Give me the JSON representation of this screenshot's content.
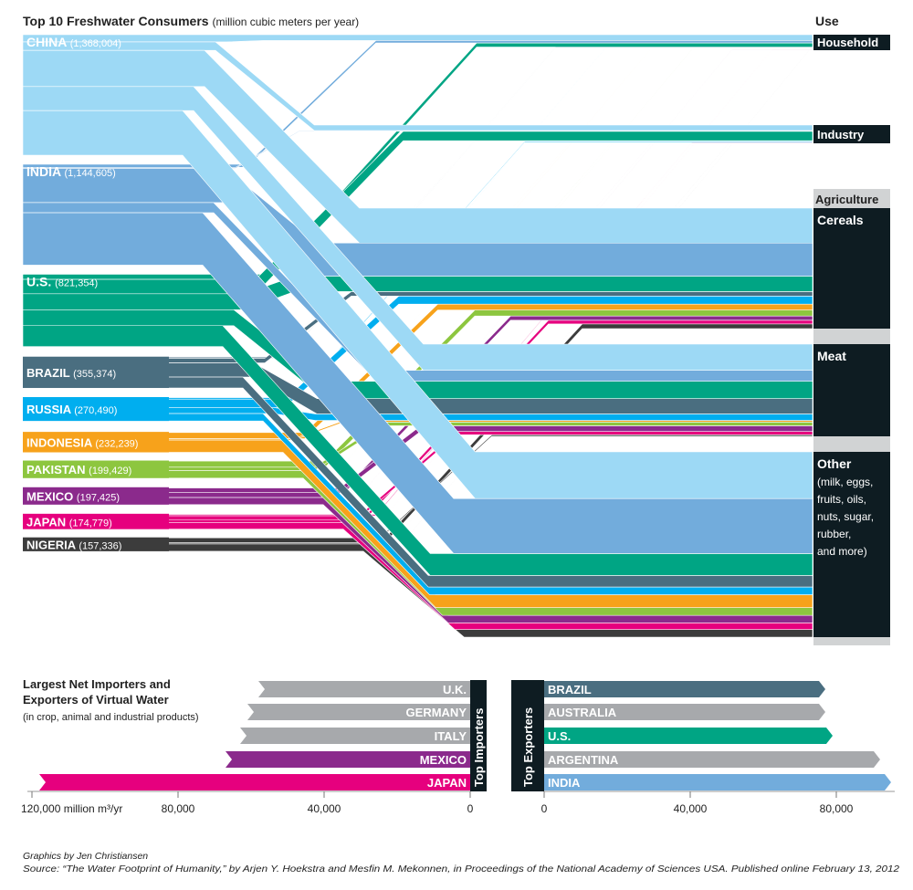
{
  "chart_data": [
    {
      "type": "sankey",
      "title": "Top 10 Freshwater Consumers",
      "subtitle": "(million cubic meters per year)",
      "use_header": "Use",
      "uses": [
        "Household",
        "Industry",
        "Cereals",
        "Meat",
        "Other"
      ],
      "use_labels": {
        "household": "Household",
        "industry": "Industry",
        "agriculture": "Agriculture",
        "cereals": "Cereals",
        "meat": "Meat",
        "other": "Other",
        "other_note": [
          "(milk, eggs,",
          "fruits, oils,",
          "nuts, sugar,",
          "rubber,",
          "and more)"
        ]
      },
      "countries": [
        {
          "name": "CHINA",
          "value": 1368004,
          "value_label": "(1,368,004)",
          "color": "#9dd9f5",
          "shares": [
            0.06,
            0.07,
            0.3,
            0.2,
            0.37
          ]
        },
        {
          "name": "INDIA",
          "value": 1144605,
          "value_label": "(1,144,605)",
          "color": "#72acdc",
          "shares": [
            0.03,
            0.01,
            0.34,
            0.1,
            0.52
          ]
        },
        {
          "name": "U.S.",
          "value": 821354,
          "value_label": "(821,354)",
          "color": "#00a584",
          "shares": [
            0.07,
            0.2,
            0.22,
            0.22,
            0.29
          ]
        },
        {
          "name": "BRAZIL",
          "value": 355374,
          "value_label": "(355,374)",
          "color": "#4a6e80",
          "shares": [
            0.03,
            0.02,
            0.15,
            0.45,
            0.35
          ]
        },
        {
          "name": "RUSSIA",
          "value": 270490,
          "value_label": "(270,490)",
          "color": "#00aeef",
          "shares": [
            0.03,
            0.06,
            0.35,
            0.25,
            0.31
          ]
        },
        {
          "name": "INDONESIA",
          "value": 232239,
          "value_label": "(232,239)",
          "color": "#f7a21b",
          "shares": [
            0.02,
            0.01,
            0.3,
            0.07,
            0.6
          ]
        },
        {
          "name": "PAKISTAN",
          "value": 199429,
          "value_label": "(199,429)",
          "color": "#8dc63f",
          "shares": [
            0.02,
            0.01,
            0.35,
            0.2,
            0.42
          ]
        },
        {
          "name": "MEXICO",
          "value": 197425,
          "value_label": "(197,425)",
          "color": "#8b2a8c",
          "shares": [
            0.03,
            0.01,
            0.25,
            0.3,
            0.41
          ]
        },
        {
          "name": "JAPAN",
          "value": 174779,
          "value_label": "(174,779)",
          "color": "#e6007e",
          "shares": [
            0.05,
            0.08,
            0.25,
            0.2,
            0.42
          ]
        },
        {
          "name": "NIGERIA",
          "value": 157336,
          "value_label": "(157,336)",
          "color": "#3c3c3c",
          "shares": [
            0.02,
            0.01,
            0.35,
            0.1,
            0.52
          ]
        }
      ]
    },
    {
      "type": "bar",
      "title": [
        "Largest Net Importers and",
        "Exporters of Virtual Water"
      ],
      "subtitle": "(in crop, animal and industrial products)",
      "importers_label": "Top Importers",
      "exporters_label": "Top Exporters",
      "unit": "million m³/yr",
      "importers": [
        {
          "name": "U.K.",
          "value": 58000,
          "color": "#a7a9ac"
        },
        {
          "name": "GERMANY",
          "value": 61000,
          "color": "#a7a9ac"
        },
        {
          "name": "ITALY",
          "value": 63000,
          "color": "#a7a9ac"
        },
        {
          "name": "MEXICO",
          "value": 67000,
          "color": "#8b2a8c"
        },
        {
          "name": "JAPAN",
          "value": 118000,
          "color": "#e6007e"
        }
      ],
      "exporters": [
        {
          "name": "BRAZIL",
          "value": 77000,
          "color": "#4a6e80"
        },
        {
          "name": "AUSTRALIA",
          "value": 77000,
          "color": "#a7a9ac"
        },
        {
          "name": "U.S.",
          "value": 79000,
          "color": "#00a584"
        },
        {
          "name": "ARGENTINA",
          "value": 92000,
          "color": "#a7a9ac"
        },
        {
          "name": "INDIA",
          "value": 95000,
          "color": "#72acdc"
        }
      ],
      "importer_ticks": [
        {
          "value": 120000,
          "label": "120,000 million m³/yr"
        },
        {
          "value": 80000,
          "label": "80,000"
        },
        {
          "value": 40000,
          "label": "40,000"
        },
        {
          "value": 0,
          "label": "0"
        }
      ],
      "exporter_ticks": [
        {
          "value": 0,
          "label": "0"
        },
        {
          "value": 40000,
          "label": "40,000"
        },
        {
          "value": 80000,
          "label": "80,000"
        }
      ]
    }
  ],
  "credits": {
    "graphics": "Graphics by Jen Christiansen",
    "source": "Source: “The Water Footprint of Humanity,” by Arjen Y. Hoekstra and Mesfin M. Mekonnen, in Proceedings of the National Academy of Sciences USA. Published online February 13, 2012"
  }
}
